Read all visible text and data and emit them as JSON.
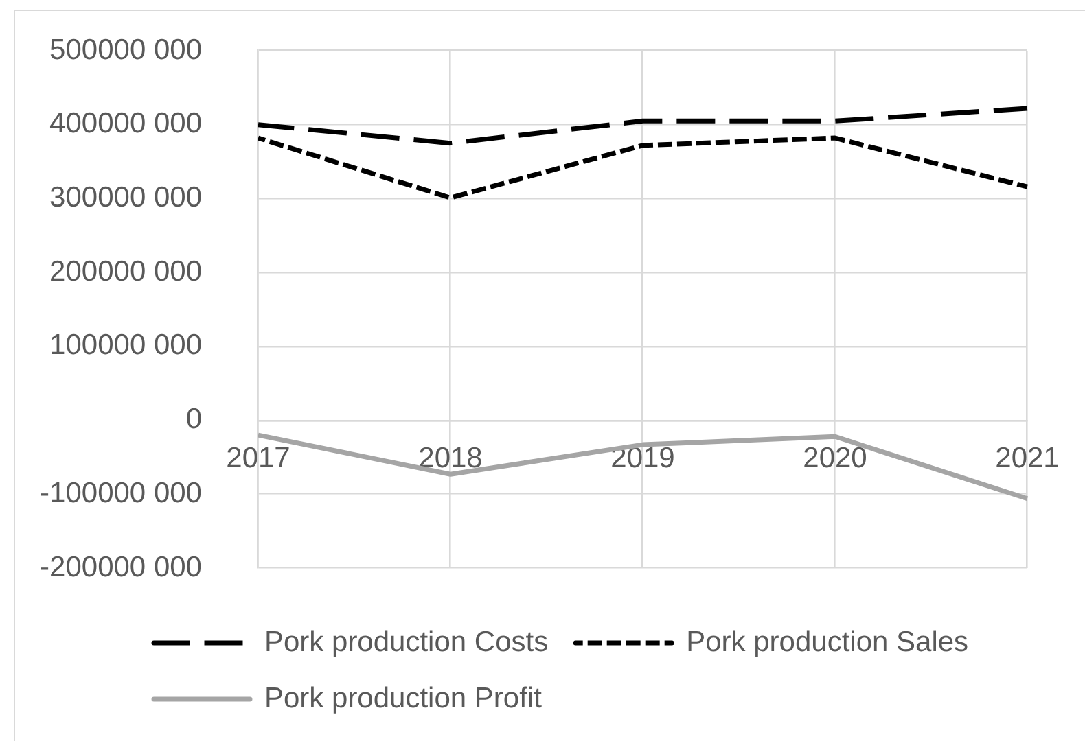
{
  "chart_data": {
    "type": "line",
    "categories": [
      "2017",
      "2018",
      "2019",
      "2020",
      "2021"
    ],
    "series": [
      {
        "name": "Pork production Costs",
        "color": "#000000",
        "line_style": "dashed",
        "values": [
          400000000,
          375000000,
          405000000,
          405000000,
          422000000
        ]
      },
      {
        "name": "Pork production Sales",
        "color": "#000000",
        "line_style": "dotted",
        "values": [
          382000000,
          301000000,
          372000000,
          382000000,
          316000000
        ]
      },
      {
        "name": "Pork production Profit",
        "color": "#a5a5a5",
        "line_style": "solid",
        "values": [
          -20000000,
          -73000000,
          -33000000,
          -22000000,
          -106000000
        ]
      }
    ],
    "ylim": [
      -200000000,
      500000000
    ],
    "yticks": [
      {
        "value": -200000000,
        "label": "-200000 000"
      },
      {
        "value": -100000000,
        "label": "-100000 000"
      },
      0,
      {
        "value": 100000000,
        "label": "100000 000"
      },
      {
        "value": 200000000,
        "label": "200000 000"
      },
      {
        "value": 300000000,
        "label": "300000 000"
      },
      {
        "value": 400000000,
        "label": "400000 000"
      },
      {
        "value": 500000000,
        "label": "500000 000"
      }
    ],
    "grid": true,
    "legend": "bottom",
    "marker": "none"
  }
}
